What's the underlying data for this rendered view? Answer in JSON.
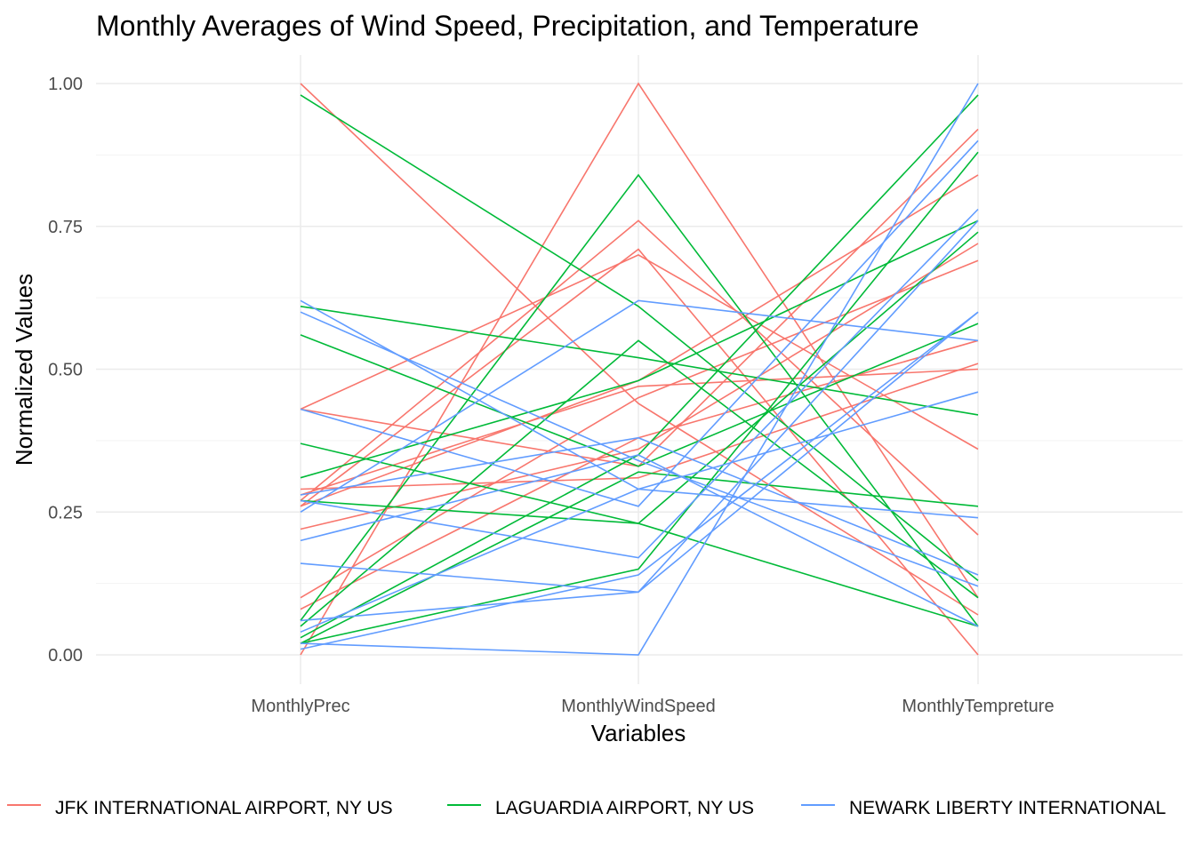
{
  "chart_data": {
    "type": "line",
    "title": "Monthly Averages of Wind Speed, Precipitation, and Temperature",
    "xlabel": "Variables",
    "ylabel": "Normalized Values",
    "categories": [
      "MonthlyPrec",
      "MonthlyWindSpeed",
      "MonthlyTempreture"
    ],
    "ylim": [
      0,
      1
    ],
    "yticks": [
      "0.00",
      "0.25",
      "0.50",
      "0.75",
      "1.00"
    ],
    "grid": true,
    "legend_position": "bottom",
    "groups": [
      {
        "name": "JFK INTERNATIONAL AIRPORT, NY US",
        "color": "#F8766D",
        "lines": [
          [
            1.0,
            0.44,
            0.07
          ],
          [
            0.43,
            0.7,
            0.36
          ],
          [
            0.43,
            0.33,
            0.92
          ],
          [
            0.29,
            0.31,
            0.51
          ],
          [
            0.28,
            0.47,
            0.5
          ],
          [
            0.27,
            0.76,
            0.21
          ],
          [
            0.26,
            0.71,
            0.0
          ],
          [
            0.26,
            0.48,
            0.84
          ],
          [
            0.22,
            0.36,
            0.72
          ],
          [
            0.1,
            0.45,
            0.69
          ],
          [
            0.08,
            0.38,
            0.55
          ],
          [
            0.0,
            1.0,
            0.1
          ]
        ]
      },
      {
        "name": "LAGUARDIA AIRPORT, NY US",
        "color": "#00BA38",
        "lines": [
          [
            0.98,
            0.61,
            0.13
          ],
          [
            0.61,
            0.52,
            0.42
          ],
          [
            0.56,
            0.33,
            0.58
          ],
          [
            0.37,
            0.23,
            0.74
          ],
          [
            0.31,
            0.48,
            0.76
          ],
          [
            0.27,
            0.23,
            0.05
          ],
          [
            0.06,
            0.84,
            0.05
          ],
          [
            0.05,
            0.55,
            0.1
          ],
          [
            0.03,
            0.35,
            0.98
          ],
          [
            0.02,
            0.15,
            0.88
          ],
          [
            0.02,
            0.32,
            0.26
          ]
        ]
      },
      {
        "name": "NEWARK LIBERTY INTERNATIONAL",
        "color": "#619CFF",
        "lines": [
          [
            0.62,
            0.29,
            0.24
          ],
          [
            0.6,
            0.34,
            0.12
          ],
          [
            0.43,
            0.26,
            0.9
          ],
          [
            0.28,
            0.38,
            0.14
          ],
          [
            0.27,
            0.17,
            0.78
          ],
          [
            0.25,
            0.62,
            0.55
          ],
          [
            0.2,
            0.35,
            0.05
          ],
          [
            0.16,
            0.11,
            0.76
          ],
          [
            0.06,
            0.11,
            0.6
          ],
          [
            0.04,
            0.29,
            0.46
          ],
          [
            0.02,
            0.0,
            1.0
          ],
          [
            0.01,
            0.14,
            0.6
          ]
        ]
      }
    ]
  }
}
